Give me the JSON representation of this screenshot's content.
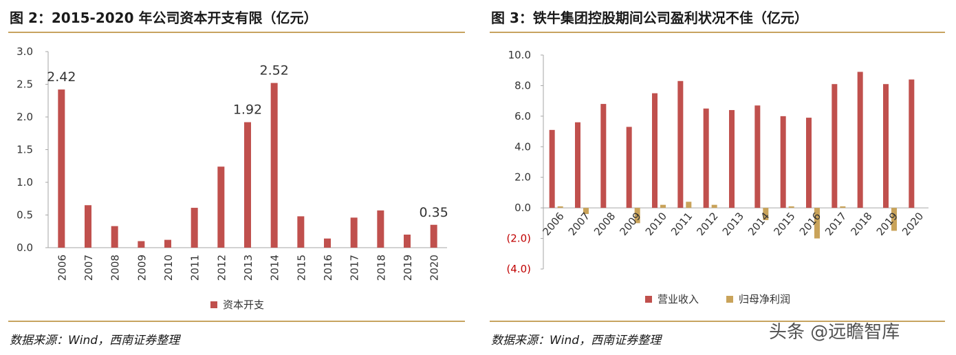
{
  "chart_data": [
    {
      "type": "bar",
      "title": "图 2：2015-2020 年公司资本开支有限（亿元）",
      "source": "数据来源：Wind，西南证券整理",
      "categories": [
        "2006",
        "2007",
        "2008",
        "2009",
        "2010",
        "2011",
        "2012",
        "2013",
        "2014",
        "2015",
        "2016",
        "2017",
        "2018",
        "2019",
        "2020"
      ],
      "series": [
        {
          "name": "资本开支",
          "color": "#c0504d",
          "values": [
            2.42,
            0.65,
            0.33,
            0.1,
            0.12,
            0.61,
            1.24,
            1.92,
            2.52,
            0.48,
            0.14,
            0.46,
            0.57,
            0.2,
            0.35
          ]
        }
      ],
      "data_labels": [
        {
          "category": "2006",
          "text": "2.42"
        },
        {
          "category": "2013",
          "text": "1.92"
        },
        {
          "category": "2014",
          "text": "2.52"
        },
        {
          "category": "2020",
          "text": "0.35"
        }
      ],
      "ylim": [
        0,
        3
      ],
      "yticks": [
        "0.0",
        "0.5",
        "1.0",
        "1.5",
        "2.0",
        "2.5",
        "3.0"
      ],
      "xlabel": "",
      "ylabel": "",
      "legend_position": "bottom"
    },
    {
      "type": "bar",
      "title": "图 3：铁牛集团控股期间公司盈利状况不佳（亿元）",
      "source": "数据来源：Wind，西南证券整理",
      "categories": [
        "2006",
        "2007",
        "2008",
        "2009",
        "2010",
        "2011",
        "2012",
        "2013",
        "2014",
        "2015",
        "2016",
        "2017",
        "2018",
        "2019",
        "2020"
      ],
      "series": [
        {
          "name": "营业收入",
          "color": "#c0504d",
          "values": [
            5.1,
            5.6,
            6.8,
            5.3,
            7.5,
            8.3,
            6.5,
            6.4,
            6.7,
            6.0,
            5.9,
            8.1,
            8.9,
            8.1,
            8.4
          ]
        },
        {
          "name": "归母净利润",
          "color": "#c9a35a",
          "values": [
            0.1,
            -0.4,
            0.0,
            -1.0,
            0.2,
            0.4,
            0.2,
            0.0,
            -0.8,
            0.1,
            -2.0,
            0.1,
            0.0,
            -1.5,
            0.0
          ]
        }
      ],
      "ylim": [
        -4,
        10
      ],
      "yticks": [
        "(4.0)",
        "(2.0)",
        "0.0",
        "2.0",
        "4.0",
        "6.0",
        "8.0",
        "10.0"
      ],
      "xlabel": "",
      "ylabel": "",
      "legend_position": "bottom"
    }
  ],
  "watermark": "头条 @远瞻智库"
}
